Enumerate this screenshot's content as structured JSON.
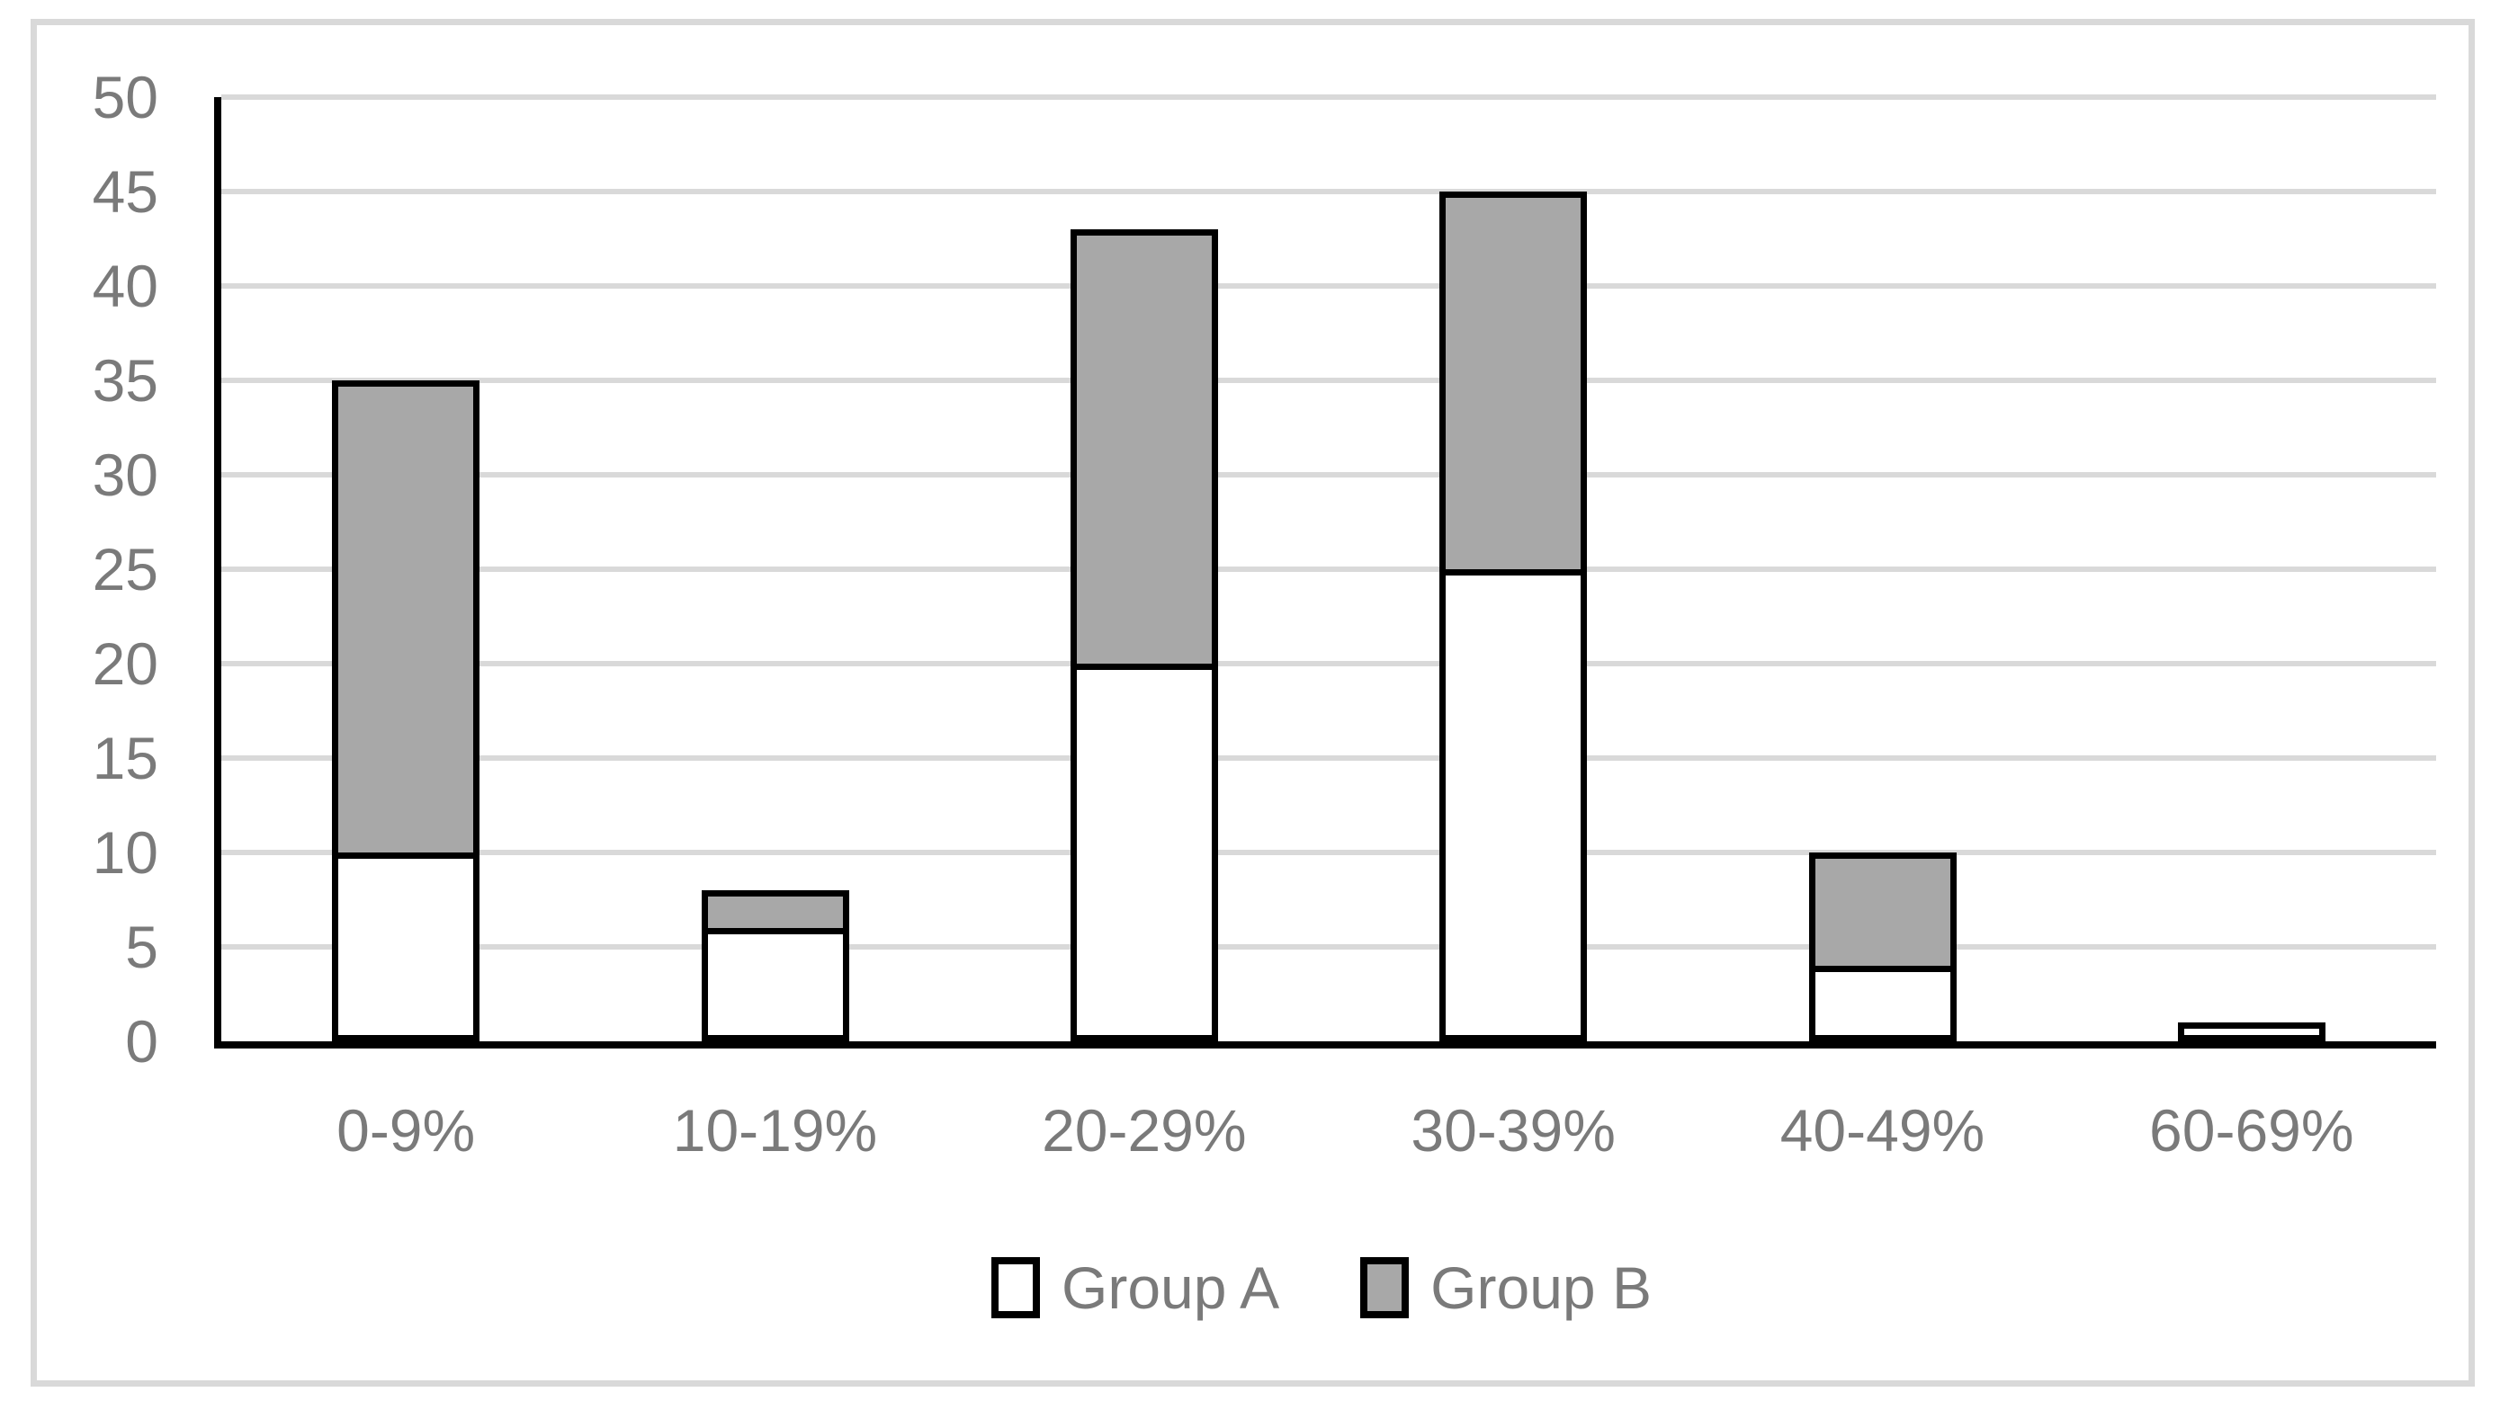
{
  "chart_data": {
    "type": "bar",
    "stacked": true,
    "title": "",
    "xlabel": "",
    "ylabel": "",
    "categories": [
      "0-9%",
      "10-19%",
      "20-29%",
      "30-39%",
      "40-49%",
      "60-69%"
    ],
    "series": [
      {
        "name": "Group A",
        "color": "#ffffff",
        "values": [
          10,
          6,
          20,
          25,
          4,
          1
        ]
      },
      {
        "name": "Group B",
        "color": "#a8a8a8",
        "values": [
          25,
          2,
          23,
          20,
          6,
          0
        ]
      }
    ],
    "totals": [
      35,
      8,
      43,
      45,
      10,
      1
    ],
    "ylim": [
      0,
      50
    ],
    "ytick_step": 5,
    "yticks": [
      "0",
      "5",
      "10",
      "15",
      "20",
      "25",
      "30",
      "35",
      "40",
      "45",
      "50"
    ],
    "grid": true,
    "legend_position": "bottom",
    "colors": {
      "axis": "#000000",
      "bar_border": "#000000",
      "gridline": "#d9d9d9",
      "frame": "#d9d9d9",
      "tick_text": "#7a7a7a",
      "background": "#ffffff"
    }
  }
}
